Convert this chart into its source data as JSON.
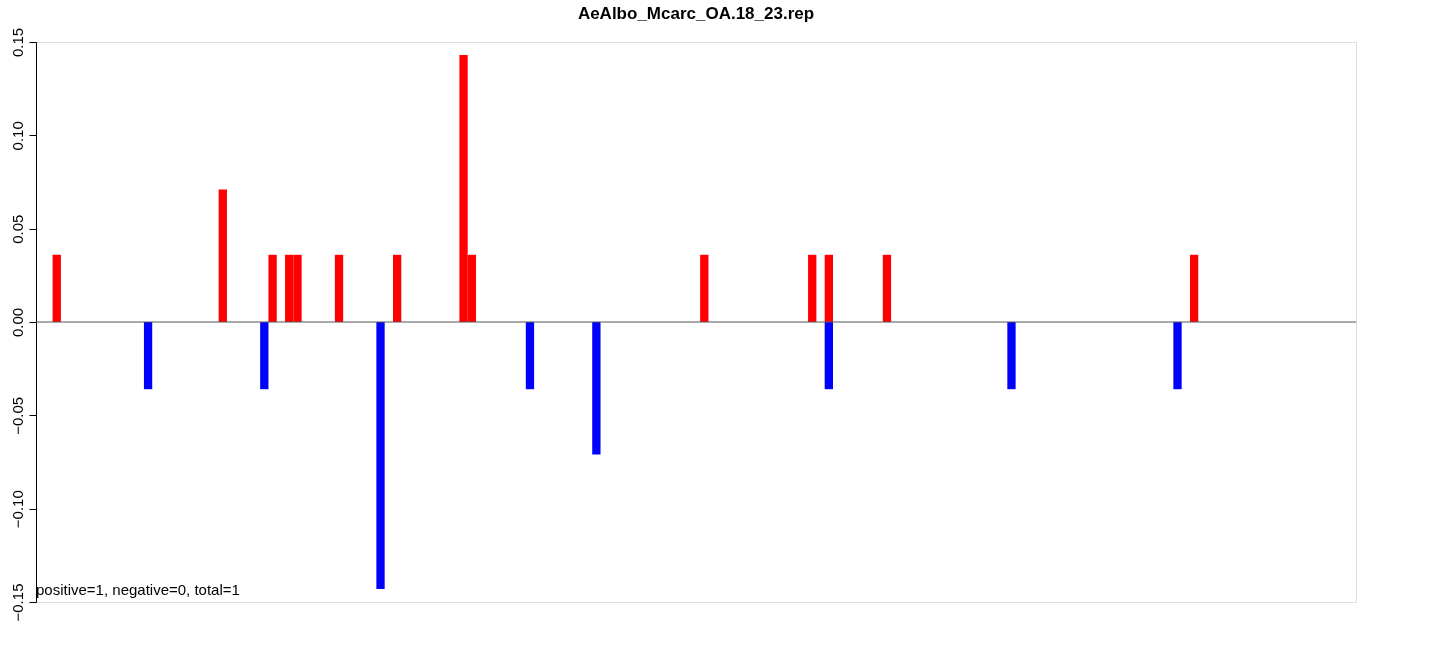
{
  "chart_data": {
    "type": "bar",
    "title": "AeAlbo_Mcarc_OA.18_23.rep",
    "categories": [
      null,
      null,
      null,
      null,
      null,
      null,
      null,
      null,
      null,
      null,
      null,
      null,
      null,
      null,
      null,
      null,
      null,
      null,
      null,
      null,
      null,
      null,
      null,
      null,
      null,
      null,
      null,
      null,
      null,
      null,
      null,
      null,
      null,
      null,
      null,
      null,
      null,
      null,
      null,
      null,
      null,
      null,
      null,
      null,
      null,
      null,
      null,
      null,
      null,
      null,
      null,
      null,
      null,
      null,
      null,
      null,
      null,
      null,
      null,
      null,
      null,
      null,
      null,
      null,
      null,
      null,
      null,
      null,
      null,
      null,
      null,
      null,
      null,
      null,
      null,
      null,
      null,
      null,
      null,
      null,
      null,
      null,
      null,
      null,
      null,
      null,
      null,
      null,
      null,
      null,
      null,
      null,
      null,
      null,
      null,
      null,
      null,
      null,
      null,
      null,
      null,
      null,
      null,
      null,
      null,
      null,
      null,
      null,
      null,
      null,
      null,
      null,
      null,
      null,
      null,
      null,
      null,
      null,
      null,
      null,
      null,
      null,
      null,
      null,
      null,
      null,
      null,
      null,
      null,
      null,
      null,
      null,
      null,
      null,
      null,
      null,
      null,
      null,
      null,
      null,
      null,
      null,
      null,
      null,
      null,
      null,
      null,
      null,
      null,
      null,
      null,
      null,
      null,
      null,
      null,
      null,
      null,
      null,
      null
    ],
    "series": [
      {
        "color": "#ff0000",
        "values": [
          null,
          null,
          0.036,
          null,
          null,
          null,
          null,
          null,
          null,
          null,
          null,
          null,
          null,
          null,
          null,
          null,
          null,
          null,
          null,
          null,
          null,
          null,
          0.071,
          null,
          null,
          null,
          null,
          null,
          0.036,
          null,
          0.036,
          0.036,
          null,
          null,
          null,
          null,
          0.036,
          null,
          null,
          null,
          null,
          null,
          null,
          0.036,
          null,
          null,
          null,
          null,
          null,
          null,
          null,
          0.143,
          0.036,
          null,
          null,
          null,
          null,
          null,
          null,
          null,
          null,
          null,
          null,
          null,
          null,
          null,
          null,
          null,
          null,
          null,
          null,
          null,
          null,
          null,
          null,
          null,
          null,
          null,
          null,
          null,
          0.036,
          null,
          null,
          null,
          null,
          null,
          null,
          null,
          null,
          null,
          null,
          null,
          null,
          0.036,
          null,
          0.036,
          null,
          null,
          null,
          null,
          null,
          null,
          0.036,
          null,
          null,
          null,
          null,
          null,
          null,
          null,
          null,
          null,
          null,
          null,
          null,
          null,
          null,
          null,
          null,
          null,
          null,
          null,
          null,
          null,
          null,
          null,
          null,
          null,
          null,
          null,
          null,
          null,
          null,
          null,
          null,
          null,
          null,
          null,
          null,
          0.036,
          null,
          null,
          null,
          null,
          null,
          null,
          null,
          null,
          null,
          null,
          null,
          null,
          null,
          null,
          null,
          null,
          null,
          null,
          null
        ]
      },
      {
        "color": "#0000ff",
        "values": [
          null,
          null,
          null,
          null,
          null,
          null,
          null,
          null,
          null,
          null,
          null,
          null,
          null,
          -0.036,
          null,
          null,
          null,
          null,
          null,
          null,
          null,
          null,
          null,
          null,
          null,
          null,
          null,
          -0.036,
          null,
          null,
          null,
          null,
          null,
          null,
          null,
          null,
          null,
          null,
          null,
          null,
          null,
          -0.143,
          null,
          null,
          null,
          null,
          null,
          null,
          null,
          null,
          null,
          null,
          null,
          null,
          null,
          null,
          null,
          null,
          null,
          -0.036,
          null,
          null,
          null,
          null,
          null,
          null,
          null,
          -0.071,
          null,
          null,
          null,
          null,
          null,
          null,
          null,
          null,
          null,
          null,
          null,
          null,
          null,
          null,
          null,
          null,
          null,
          null,
          null,
          null,
          null,
          null,
          null,
          null,
          null,
          null,
          null,
          -0.036,
          null,
          null,
          null,
          null,
          null,
          null,
          null,
          null,
          null,
          null,
          null,
          null,
          null,
          null,
          null,
          null,
          null,
          null,
          null,
          null,
          null,
          -0.036,
          null,
          null,
          null,
          null,
          null,
          null,
          null,
          null,
          null,
          null,
          null,
          null,
          null,
          null,
          null,
          null,
          null,
          null,
          null,
          -0.036,
          null,
          null,
          null,
          null,
          null,
          null,
          null,
          null,
          null,
          null,
          null,
          null,
          null,
          null,
          null,
          null,
          null,
          null,
          null,
          null,
          null
        ]
      }
    ],
    "ylim": [
      -0.15,
      0.15
    ],
    "yticks": [
      {
        "value": -0.15,
        "label": "−0.15"
      },
      {
        "value": -0.1,
        "label": "−0.10"
      },
      {
        "value": -0.05,
        "label": "−0.05"
      },
      {
        "value": 0,
        "label": "0.00"
      },
      {
        "value": 0.05,
        "label": "0.05"
      },
      {
        "value": 0.1,
        "label": "0.10"
      },
      {
        "value": 0.15,
        "label": "0.15"
      }
    ],
    "ref_lines": [
      {
        "axis": "y",
        "value": 0,
        "color": "#555555"
      }
    ],
    "annotations": [
      "positive=1, negative=0, total=1"
    ],
    "tick_labels": "y",
    "grid": false,
    "legend": false
  }
}
